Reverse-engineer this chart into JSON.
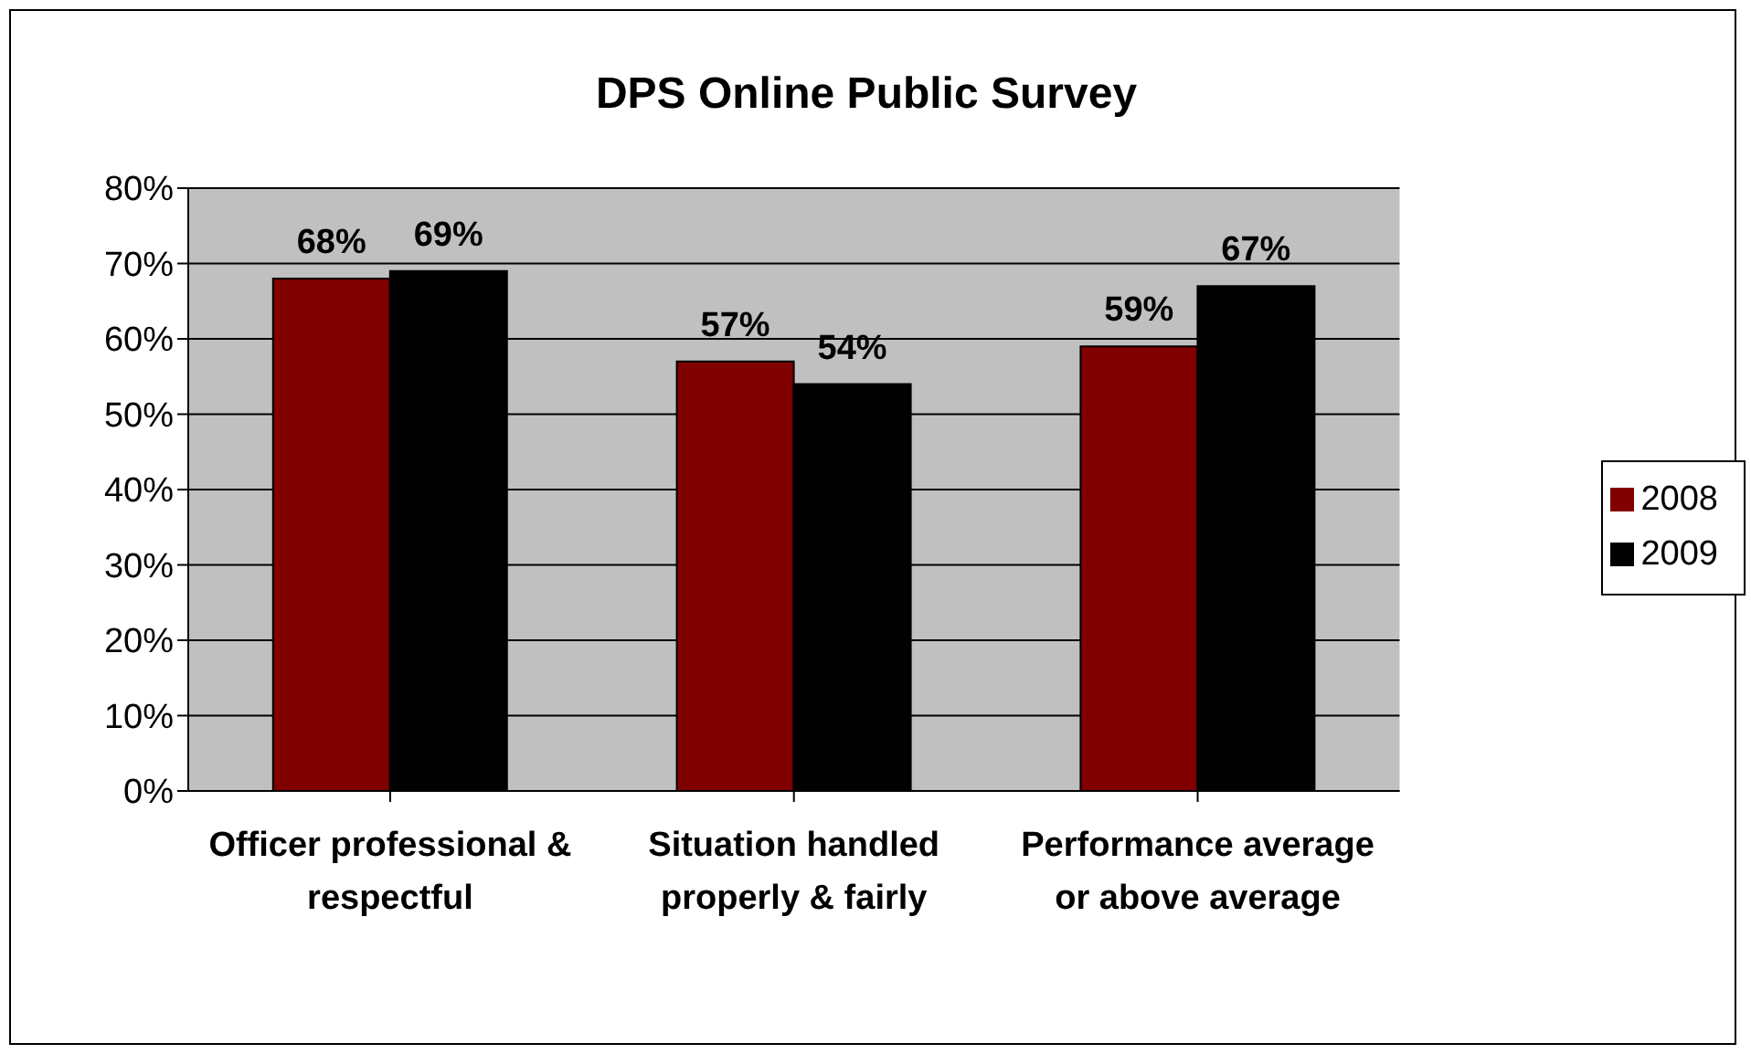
{
  "chart_data": {
    "type": "bar",
    "title": "DPS Online Public Survey",
    "categories": [
      "Officer professional & respectful",
      "Situation handled properly & fairly",
      "Performance average or above average"
    ],
    "series": [
      {
        "name": "2008",
        "color": "#800000",
        "values": [
          68,
          57,
          59
        ],
        "value_labels": [
          "68%",
          "57%",
          "59%"
        ]
      },
      {
        "name": "2009",
        "color": "#000000",
        "values": [
          69,
          54,
          67
        ],
        "value_labels": [
          "69%",
          "54%",
          "67%"
        ]
      }
    ],
    "ylim": [
      0,
      80
    ],
    "yticks": [
      {
        "value": 0,
        "label": "0%"
      },
      {
        "value": 10,
        "label": "10%"
      },
      {
        "value": 20,
        "label": "20%"
      },
      {
        "value": 30,
        "label": "30%"
      },
      {
        "value": 40,
        "label": "40%"
      },
      {
        "value": 50,
        "label": "50%"
      },
      {
        "value": 60,
        "label": "60%"
      },
      {
        "value": 70,
        "label": "70%"
      },
      {
        "value": 80,
        "label": "80%"
      }
    ],
    "grid": "y",
    "legend": "right"
  }
}
